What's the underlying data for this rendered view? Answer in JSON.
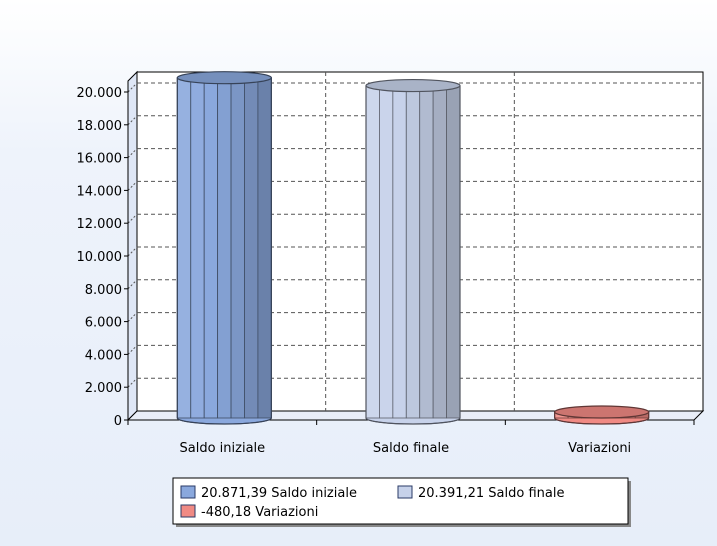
{
  "chart_data": {
    "type": "bar",
    "title": "",
    "xlabel": "",
    "ylabel": "",
    "categories": [
      "Saldo iniziale",
      "Saldo finale",
      "Variazioni"
    ],
    "values": [
      20871.39,
      20391.21,
      -480.18
    ],
    "ylim": [
      0,
      20000
    ],
    "yticks": [
      "0",
      "2.000",
      "4.000",
      "6.000",
      "8.000",
      "10.000",
      "12.000",
      "14.000",
      "16.000",
      "18.000",
      "20.000"
    ],
    "colors": [
      "#8aa8dd",
      "#c7d2ea",
      "#f08a84"
    ],
    "grid": true,
    "legend_position": "bottom",
    "legend": [
      {
        "label": "20.871,39 Saldo iniziale",
        "color": "#8aa8dd"
      },
      {
        "label": "20.391,21 Saldo finale",
        "color": "#c7d2ea"
      },
      {
        "label": "-480,18 Variazioni",
        "color": "#f08a84"
      }
    ]
  }
}
